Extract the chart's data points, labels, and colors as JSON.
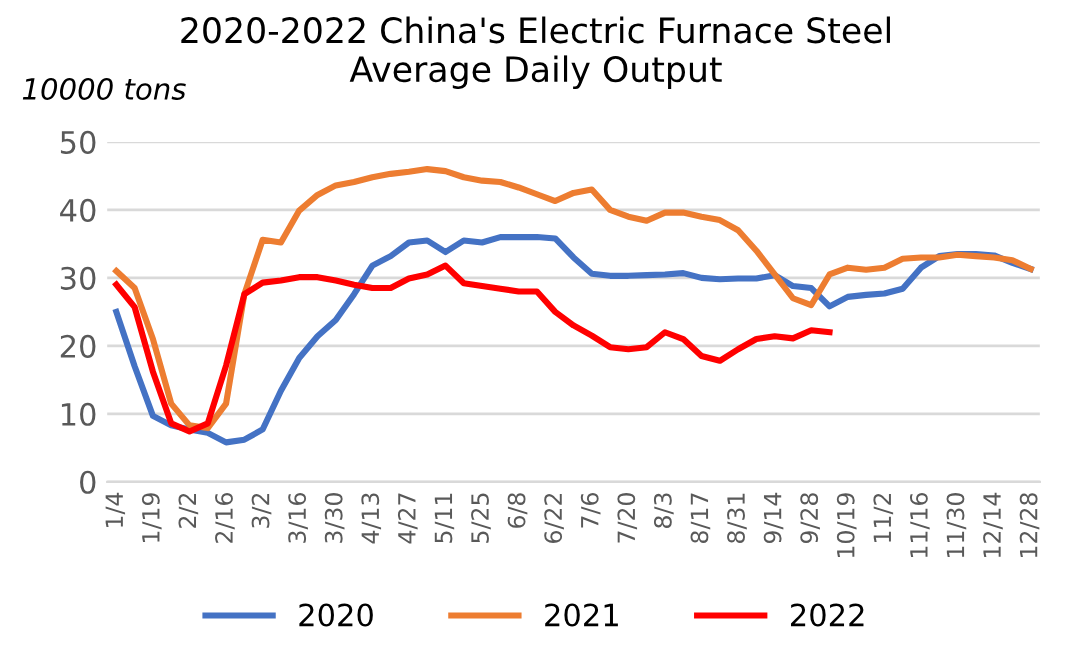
{
  "chart_data": {
    "type": "line",
    "title": "2020-2022 China's Electric Furnace Steel\nAverage Daily Output",
    "ylabel": "10000 tons",
    "categories": [
      "1/4",
      null,
      "1/19",
      null,
      "2/2",
      null,
      "2/16",
      null,
      "3/2",
      null,
      "3/16",
      null,
      "3/30",
      null,
      "4/13",
      null,
      "4/27",
      null,
      "5/11",
      null,
      "5/25",
      null,
      "6/8",
      null,
      "6/22",
      null,
      "7/6",
      null,
      "7/20",
      null,
      "8/3",
      null,
      "8/17",
      null,
      "8/31",
      null,
      "9/14",
      null,
      "9/28",
      null,
      "10/19",
      null,
      "11/2",
      null,
      "11/16",
      null,
      "11/30",
      null,
      "12/14",
      null,
      "12/28"
    ],
    "series": [
      {
        "name": "2020",
        "color": "#4472c4",
        "values": [
          25,
          17,
          9.7,
          8.3,
          7.7,
          7.2,
          5.8,
          6.2,
          7.7,
          13.4,
          18.2,
          21.4,
          23.8,
          27.6,
          31.8,
          33.2,
          35.2,
          35.5,
          33.8,
          35.5,
          35.2,
          36,
          36,
          36,
          35.8,
          33,
          30.6,
          30.3,
          30.3,
          30.4,
          30.5,
          30.7,
          30,
          29.8,
          29.9,
          29.9,
          30.4,
          28.8,
          28.5,
          25.8,
          27.2,
          27.5,
          27.7,
          28.4,
          31.5,
          33.2,
          33.5,
          33.5,
          33.3,
          32.2,
          31.3
        ]
      },
      {
        "name": "2021",
        "color": "#ed7d31",
        "values": [
          31,
          28.5,
          21,
          11.5,
          8.3,
          7.9,
          11.5,
          27.6,
          35.6,
          35.2,
          39.9,
          42.2,
          43.6,
          44.1,
          44.8,
          45.3,
          45.6,
          46,
          45.7,
          44.8,
          44.3,
          44.1,
          43.3,
          42.3,
          41.3,
          42.5,
          43,
          40,
          39,
          38.4,
          39.6,
          39.6,
          39,
          38.5,
          37,
          34,
          30.5,
          27,
          26,
          30.5,
          31.5,
          31.2,
          31.5,
          32.8,
          33,
          33,
          33.4,
          33.2,
          33,
          32.6,
          31.3
        ]
      },
      {
        "name": "2022",
        "color": "#ff0000",
        "values": [
          29,
          25.7,
          16.2,
          8.6,
          7.4,
          8.6,
          17.1,
          27.6,
          29.3,
          29.6,
          30.1,
          30.1,
          29.6,
          29,
          28.5,
          28.5,
          29.9,
          30.5,
          31.8,
          29.2,
          28.8,
          28.4,
          28,
          28,
          25,
          23,
          21.5,
          19.8,
          19.5,
          19.8,
          22,
          21,
          18.5,
          17.8,
          19.5,
          21,
          21.4,
          21.1,
          22.3,
          22,
          null,
          null,
          null,
          null,
          null,
          null,
          null,
          null,
          null,
          null,
          null
        ]
      }
    ],
    "ylim": [
      0,
      50
    ],
    "yticks": [
      0,
      10,
      20,
      30,
      40,
      50
    ],
    "grid": "y",
    "legend": "bottom",
    "marker": "none",
    "line_style": "solid"
  }
}
